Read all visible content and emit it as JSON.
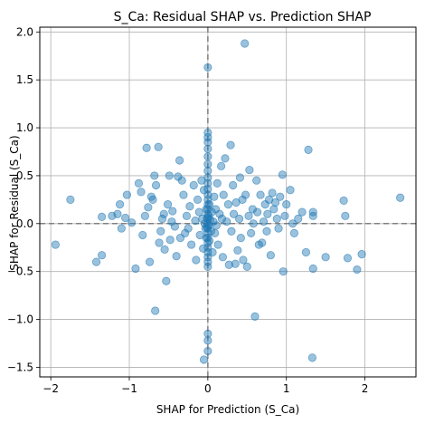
{
  "chart_data": {
    "type": "scatter",
    "title": "S_Ca: Residual SHAP vs. Prediction SHAP",
    "xlabel": "SHAP for Prediction (S_Ca)",
    "ylabel": "SHAP for Residual (S_Ca)",
    "xlim": [
      -2.14,
      2.65
    ],
    "ylim": [
      -1.6,
      2.05
    ],
    "xticks": [
      -2,
      -1,
      0,
      1,
      2
    ],
    "yticks": [
      -1.5,
      -1.0,
      -0.5,
      0.0,
      0.5,
      1.0,
      1.5,
      2.0
    ],
    "xtick_labels": [
      "−2",
      "−1",
      "0",
      "1",
      "2"
    ],
    "ytick_labels": [
      "−1.5",
      "−1.0",
      "−0.5",
      "0.0",
      "0.5",
      "1.0",
      "1.5",
      "2.0"
    ],
    "grid": true,
    "reference_lines": {
      "x": 0,
      "y": 0,
      "style": "dashed"
    },
    "point_color": "#1f77b4",
    "point_alpha": 0.45,
    "points": [
      [
        -1.94,
        -0.22
      ],
      [
        -1.75,
        0.25
      ],
      [
        -1.42,
        -0.4
      ],
      [
        -1.35,
        -0.33
      ],
      [
        -1.35,
        0.07
      ],
      [
        -1.22,
        0.08
      ],
      [
        -1.15,
        0.1
      ],
      [
        -1.12,
        0.2
      ],
      [
        -1.1,
        -0.05
      ],
      [
        -1.05,
        0.06
      ],
      [
        -1.03,
        0.3
      ],
      [
        -0.97,
        0.01
      ],
      [
        -0.92,
        -0.47
      ],
      [
        -0.88,
        0.42
      ],
      [
        -0.85,
        0.33
      ],
      [
        -0.83,
        -0.12
      ],
      [
        -0.8,
        0.08
      ],
      [
        -0.78,
        0.79
      ],
      [
        -0.76,
        0.17
      ],
      [
        -0.74,
        -0.4
      ],
      [
        -0.72,
        0.28
      ],
      [
        -0.7,
        0.25
      ],
      [
        -0.68,
        0.5
      ],
      [
        -0.67,
        -0.91
      ],
      [
        -0.66,
        0.4
      ],
      [
        -0.63,
        0.8
      ],
      [
        -0.62,
        -0.2
      ],
      [
        -0.6,
        -0.08
      ],
      [
        -0.58,
        0.05
      ],
      [
        -0.56,
        0.1
      ],
      [
        -0.55,
        -0.27
      ],
      [
        -0.53,
        -0.6
      ],
      [
        -0.51,
        0.2
      ],
      [
        -0.49,
        0.5
      ],
      [
        -0.48,
        -0.17
      ],
      [
        -0.46,
        0.02
      ],
      [
        -0.45,
        0.13
      ],
      [
        -0.42,
        -0.03
      ],
      [
        -0.4,
        -0.34
      ],
      [
        -0.38,
        0.49
      ],
      [
        -0.36,
        0.66
      ],
      [
        -0.35,
        -0.15
      ],
      [
        -0.33,
        0.45
      ],
      [
        -0.31,
        0.3
      ],
      [
        -0.29,
        -0.1
      ],
      [
        -0.27,
        0.08
      ],
      [
        -0.25,
        -0.05
      ],
      [
        -0.23,
        0.18
      ],
      [
        -0.21,
        -0.22
      ],
      [
        -0.18,
        0.4
      ],
      [
        -0.16,
        0.03
      ],
      [
        -0.15,
        -0.38
      ],
      [
        -0.13,
        0.25
      ],
      [
        -0.11,
        0.12
      ],
      [
        -0.1,
        -0.12
      ],
      [
        -0.08,
        0.45
      ],
      [
        -0.07,
        0.05
      ],
      [
        -0.06,
        -0.26
      ],
      [
        -0.05,
        0.35
      ],
      [
        -0.04,
        0.0
      ],
      [
        -0.03,
        -0.05
      ],
      [
        -0.02,
        0.15
      ],
      [
        -0.02,
        -0.15
      ],
      [
        -0.01,
        0.06
      ],
      [
        -0.01,
        -0.04
      ],
      [
        0.0,
        1.63
      ],
      [
        0.0,
        0.95
      ],
      [
        0.0,
        0.9
      ],
      [
        0.0,
        0.85
      ],
      [
        0.0,
        0.78
      ],
      [
        0.0,
        0.7
      ],
      [
        0.0,
        0.62
      ],
      [
        0.0,
        0.55
      ],
      [
        0.0,
        0.48
      ],
      [
        0.0,
        0.42
      ],
      [
        0.0,
        0.36
      ],
      [
        0.0,
        0.3
      ],
      [
        0.0,
        0.25
      ],
      [
        0.0,
        0.2
      ],
      [
        0.0,
        0.15
      ],
      [
        0.0,
        0.1
      ],
      [
        0.0,
        0.05
      ],
      [
        0.0,
        0.0
      ],
      [
        0.0,
        -0.05
      ],
      [
        0.0,
        -0.1
      ],
      [
        0.0,
        -0.15
      ],
      [
        0.0,
        -0.2
      ],
      [
        0.0,
        -0.25
      ],
      [
        0.0,
        -0.3
      ],
      [
        0.0,
        -0.35
      ],
      [
        0.0,
        -0.4
      ],
      [
        0.0,
        -0.45
      ],
      [
        0.0,
        -1.15
      ],
      [
        0.0,
        -1.22
      ],
      [
        0.0,
        -1.33
      ],
      [
        -0.05,
        -1.42
      ],
      [
        0.01,
        0.08
      ],
      [
        0.01,
        -0.02
      ],
      [
        0.02,
        0.2
      ],
      [
        0.02,
        -0.18
      ],
      [
        0.03,
        0.04
      ],
      [
        0.04,
        -0.08
      ],
      [
        0.05,
        0.12
      ],
      [
        0.06,
        -0.3
      ],
      [
        0.07,
        0.02
      ],
      [
        0.08,
        0.28
      ],
      [
        0.09,
        -0.1
      ],
      [
        0.1,
        0.15
      ],
      [
        0.11,
        -0.02
      ],
      [
        0.12,
        0.42
      ],
      [
        0.13,
        -0.22
      ],
      [
        0.15,
        0.1
      ],
      [
        0.17,
        0.6
      ],
      [
        0.18,
        0.05
      ],
      [
        0.19,
        -0.35
      ],
      [
        0.2,
        0.3
      ],
      [
        0.22,
        0.68
      ],
      [
        0.24,
        0.02
      ],
      [
        0.26,
        0.2
      ],
      [
        0.27,
        -0.43
      ],
      [
        0.29,
        0.82
      ],
      [
        0.3,
        -0.08
      ],
      [
        0.32,
        0.4
      ],
      [
        0.33,
        0.1
      ],
      [
        0.35,
        -0.42
      ],
      [
        0.36,
        0.22
      ],
      [
        0.38,
        -0.28
      ],
      [
        0.4,
        0.05
      ],
      [
        0.41,
        0.48
      ],
      [
        0.42,
        -0.15
      ],
      [
        0.44,
        0.25
      ],
      [
        0.45,
        -0.38
      ],
      [
        0.47,
        1.88
      ],
      [
        0.48,
        0.3
      ],
      [
        0.5,
        -0.45
      ],
      [
        0.52,
        0.08
      ],
      [
        0.53,
        0.56
      ],
      [
        0.55,
        -0.1
      ],
      [
        0.57,
        0.15
      ],
      [
        0.58,
        0.0
      ],
      [
        0.6,
        -0.97
      ],
      [
        0.62,
        0.45
      ],
      [
        0.63,
        0.12
      ],
      [
        0.65,
        -0.22
      ],
      [
        0.67,
        0.3
      ],
      [
        0.69,
        -0.2
      ],
      [
        0.71,
        0.02
      ],
      [
        0.73,
        0.2
      ],
      [
        0.75,
        -0.08
      ],
      [
        0.76,
        0.1
      ],
      [
        0.78,
        0.25
      ],
      [
        0.8,
        -0.33
      ],
      [
        0.82,
        0.32
      ],
      [
        0.84,
        0.15
      ],
      [
        0.86,
        0.22
      ],
      [
        0.88,
        0.05
      ],
      [
        0.9,
        -0.05
      ],
      [
        0.92,
        0.28
      ],
      [
        0.95,
        0.51
      ],
      [
        0.96,
        -0.5
      ],
      [
        0.98,
        0.08
      ],
      [
        1.0,
        0.2
      ],
      [
        1.05,
        0.35
      ],
      [
        1.08,
        0.0
      ],
      [
        1.1,
        -0.1
      ],
      [
        1.15,
        0.05
      ],
      [
        1.2,
        0.12
      ],
      [
        1.25,
        -0.3
      ],
      [
        1.28,
        0.77
      ],
      [
        1.33,
        -1.4
      ],
      [
        1.34,
        0.12
      ],
      [
        1.34,
        0.08
      ],
      [
        1.34,
        -0.47
      ],
      [
        1.5,
        -0.35
      ],
      [
        1.73,
        0.24
      ],
      [
        1.75,
        0.08
      ],
      [
        1.78,
        -0.36
      ],
      [
        1.9,
        -0.48
      ],
      [
        1.96,
        -0.32
      ],
      [
        2.45,
        0.27
      ]
    ]
  }
}
